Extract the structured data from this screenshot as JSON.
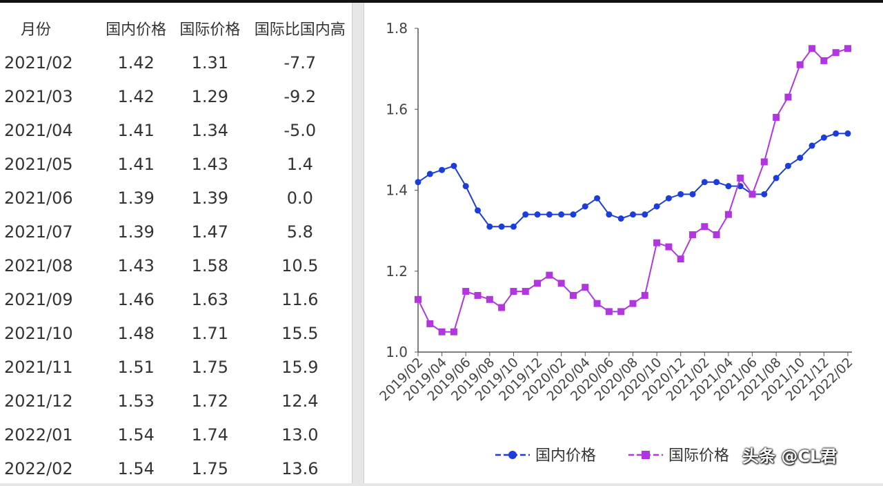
{
  "table": {
    "headers": [
      "月份",
      "国内价格",
      "国际价格",
      "国际比国内高"
    ],
    "rows": [
      [
        "2021/02",
        "1.42",
        "1.31",
        "-7.7"
      ],
      [
        "2021/03",
        "1.42",
        "1.29",
        "-9.2"
      ],
      [
        "2021/04",
        "1.41",
        "1.34",
        "-5.0"
      ],
      [
        "2021/05",
        "1.41",
        "1.43",
        "1.4"
      ],
      [
        "2021/06",
        "1.39",
        "1.39",
        "0.0"
      ],
      [
        "2021/07",
        "1.39",
        "1.47",
        "5.8"
      ],
      [
        "2021/08",
        "1.43",
        "1.58",
        "10.5"
      ],
      [
        "2021/09",
        "1.46",
        "1.63",
        "11.6"
      ],
      [
        "2021/10",
        "1.48",
        "1.71",
        "15.5"
      ],
      [
        "2021/11",
        "1.51",
        "1.75",
        "15.9"
      ],
      [
        "2021/12",
        "1.53",
        "1.72",
        "12.4"
      ],
      [
        "2022/01",
        "1.54",
        "1.74",
        "13.0"
      ],
      [
        "2022/02",
        "1.54",
        "1.75",
        "13.6"
      ]
    ]
  },
  "chart_data": {
    "type": "line",
    "title": "",
    "xlabel": "",
    "ylabel": "",
    "ylim": [
      1.0,
      1.8
    ],
    "yticks": [
      "1.0",
      "1.2",
      "1.4",
      "1.6",
      "1.8"
    ],
    "x": [
      "2019/02",
      "2019/03",
      "2019/04",
      "2019/05",
      "2019/06",
      "2019/07",
      "2019/08",
      "2019/09",
      "2019/10",
      "2019/11",
      "2019/12",
      "2020/01",
      "2020/02",
      "2020/03",
      "2020/04",
      "2020/05",
      "2020/06",
      "2020/07",
      "2020/08",
      "2020/09",
      "2020/10",
      "2020/11",
      "2020/12",
      "2021/01",
      "2021/02",
      "2021/03",
      "2021/04",
      "2021/05",
      "2021/06",
      "2021/07",
      "2021/08",
      "2021/09",
      "2021/10",
      "2021/11",
      "2021/12",
      "2022/01",
      "2022/02"
    ],
    "xtick_labels": [
      "2019/02",
      "2019/04",
      "2019/06",
      "2019/08",
      "2019/10",
      "2019/12",
      "2020/02",
      "2020/04",
      "2020/06",
      "2020/08",
      "2020/10",
      "2020/12",
      "2021/02",
      "2021/04",
      "2021/06",
      "2021/08",
      "2021/10",
      "2021/12",
      "2022/02"
    ],
    "grid": false,
    "legend_position": "bottom",
    "series": [
      {
        "name": "国内价格",
        "color": "#1d3ddb",
        "marker": "circle",
        "values": [
          1.42,
          1.44,
          1.45,
          1.46,
          1.41,
          1.35,
          1.31,
          1.31,
          1.31,
          1.34,
          1.34,
          1.34,
          1.34,
          1.34,
          1.36,
          1.38,
          1.34,
          1.33,
          1.34,
          1.34,
          1.36,
          1.38,
          1.39,
          1.39,
          1.42,
          1.42,
          1.41,
          1.41,
          1.39,
          1.39,
          1.43,
          1.46,
          1.48,
          1.51,
          1.53,
          1.54,
          1.54
        ]
      },
      {
        "name": "国际价格",
        "color": "#b236e0",
        "marker": "square",
        "values": [
          1.13,
          1.07,
          1.05,
          1.05,
          1.15,
          1.14,
          1.13,
          1.11,
          1.15,
          1.15,
          1.17,
          1.19,
          1.17,
          1.14,
          1.16,
          1.12,
          1.1,
          1.1,
          1.12,
          1.14,
          1.27,
          1.26,
          1.23,
          1.29,
          1.31,
          1.29,
          1.34,
          1.43,
          1.39,
          1.47,
          1.58,
          1.63,
          1.71,
          1.75,
          1.72,
          1.74,
          1.75
        ]
      }
    ]
  },
  "watermark": "头条 @CL君"
}
